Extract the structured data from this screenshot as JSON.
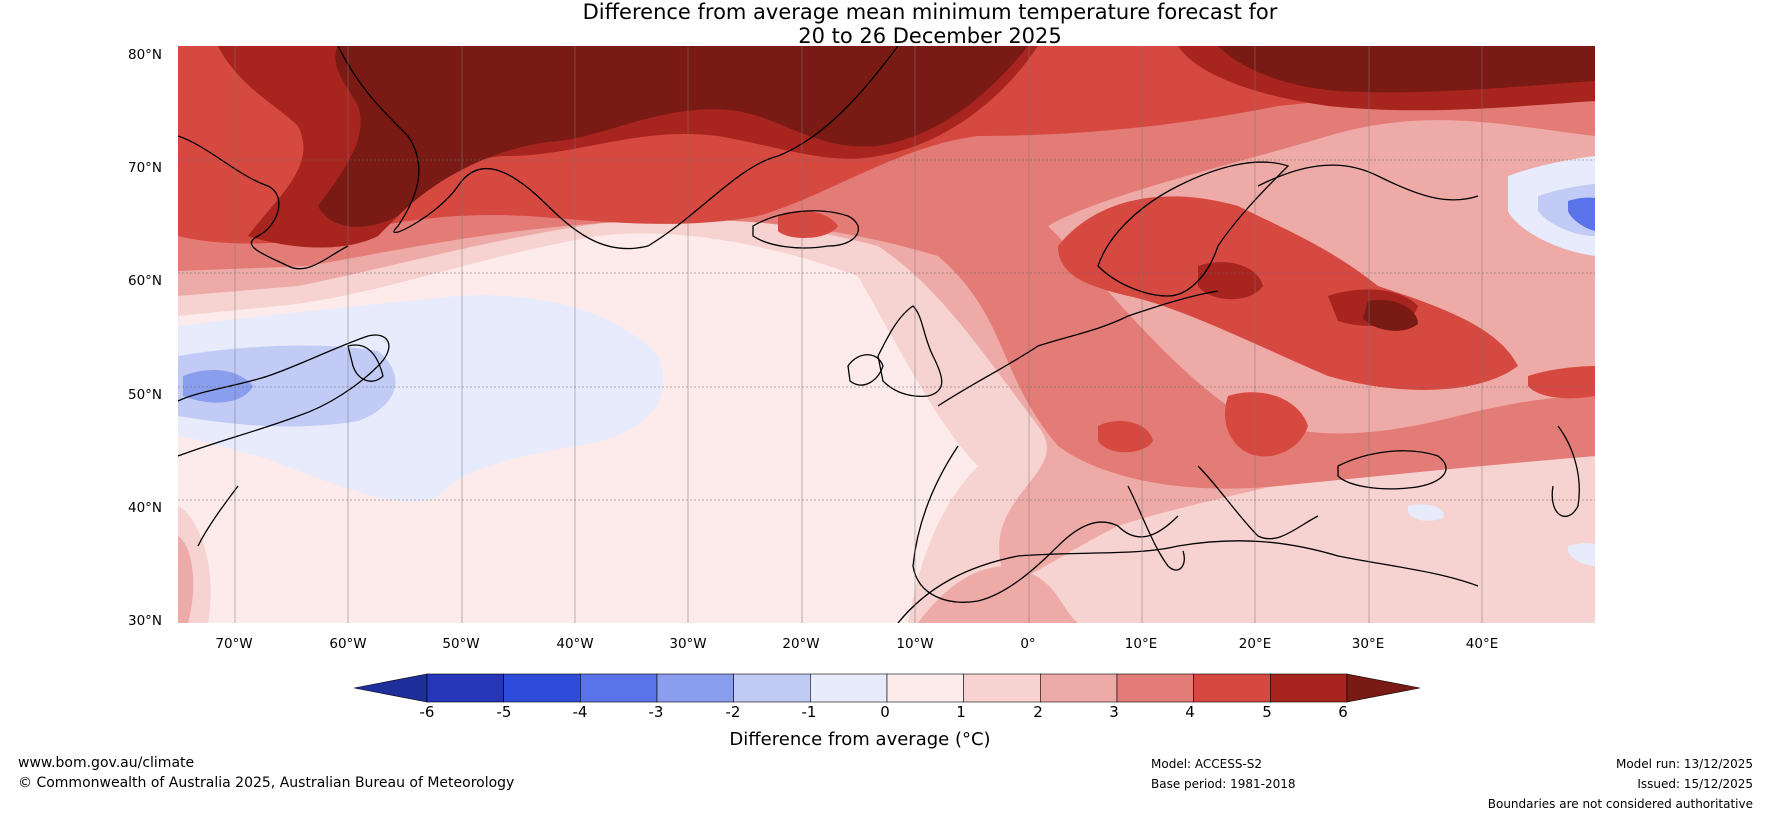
{
  "title_line1": "Difference from average mean minimum temperature forecast for",
  "title_line2": "20 to 26 December 2025",
  "lat_labels": [
    "80°N",
    "70°N",
    "60°N",
    "50°N",
    "40°N",
    "30°N"
  ],
  "lon_labels": [
    "70°W",
    "60°W",
    "50°W",
    "40°W",
    "30°W",
    "20°W",
    "10°W",
    "0°",
    "10°E",
    "20°E",
    "30°E",
    "40°E"
  ],
  "colorbar": {
    "ticks": [
      "-6",
      "-5",
      "-4",
      "-3",
      "-2",
      "-1",
      "0",
      "1",
      "2",
      "3",
      "4",
      "5",
      "6"
    ],
    "colors": [
      "#1e2f9c",
      "#2537b8",
      "#2e4bdc",
      "#5b73e8",
      "#8a9eee",
      "#c2cbf5",
      "#e7ebfb",
      "#fcebea",
      "#f6d2d0",
      "#eeaaa7",
      "#e37b76",
      "#d64940",
      "#a8241e",
      "#7a1a15"
    ],
    "label": "Difference from average (°C)"
  },
  "footer": {
    "website": "www.bom.gov.au/climate",
    "copyright": "© Commonwealth of Australia 2025, Australian Bureau of Meteorology",
    "model": "Model: ACCESS-S2",
    "base_period": "Base period: 1981-2018",
    "model_run": "Model run: 13/12/2025",
    "issued": "Issued: 15/12/2025",
    "disclaimer": "Boundaries are not considered authoritative"
  }
}
